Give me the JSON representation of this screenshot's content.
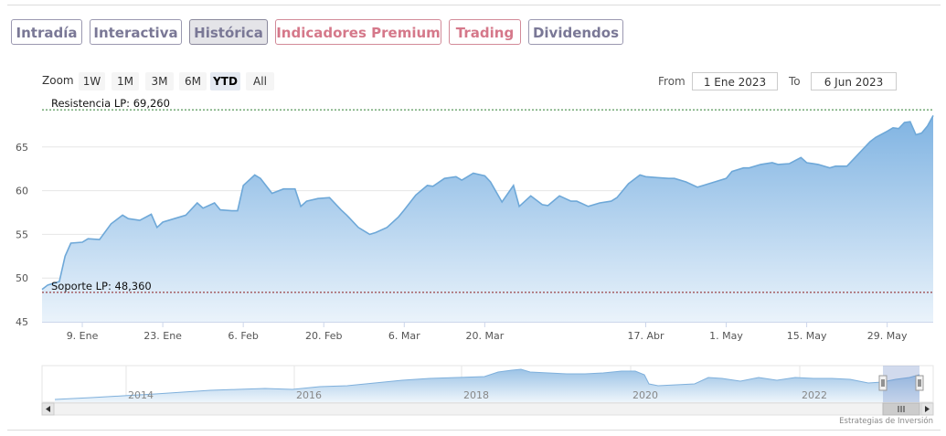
{
  "tabs": [
    {
      "label": "Intradía",
      "style": "gray"
    },
    {
      "label": "Interactiva",
      "style": "gray"
    },
    {
      "label": "Histórica",
      "style": "active"
    },
    {
      "label": "Indicadores Premium",
      "style": "red"
    },
    {
      "label": "Trading",
      "style": "red"
    },
    {
      "label": "Dividendos",
      "style": "gray"
    }
  ],
  "toolbar": {
    "zoom_label": "Zoom",
    "zoom_buttons": [
      "1W",
      "1M",
      "3M",
      "6M",
      "YTD",
      "All"
    ],
    "zoom_active": "YTD",
    "from_label": "From",
    "from_value": "1 Ene 2023",
    "to_label": "To",
    "to_value": "6 Jun 2023"
  },
  "chart_data": {
    "type": "area",
    "x_range": [
      "2023-01-02",
      "2023-06-06"
    ],
    "ylim": [
      45,
      70
    ],
    "y_ticks": [
      45,
      50,
      55,
      60,
      65
    ],
    "x_ticks": [
      {
        "date": "2023-01-09",
        "label": "9. Ene"
      },
      {
        "date": "2023-01-23",
        "label": "23. Ene"
      },
      {
        "date": "2023-02-06",
        "label": "6. Feb"
      },
      {
        "date": "2023-02-20",
        "label": "20. Feb"
      },
      {
        "date": "2023-03-06",
        "label": "6. Mar"
      },
      {
        "date": "2023-03-20",
        "label": "20. Mar"
      },
      {
        "date": "2023-04-17",
        "label": "17. Abr"
      },
      {
        "date": "2023-05-01",
        "label": "1. May"
      },
      {
        "date": "2023-05-15",
        "label": "15. May"
      },
      {
        "date": "2023-05-29",
        "label": "29. May"
      }
    ],
    "grid": true,
    "series": [
      {
        "values": [
          [
            "2023-01-02",
            48.7
          ],
          [
            "2023-01-03",
            49.2
          ],
          [
            "2023-01-05",
            49.6
          ],
          [
            "2023-01-06",
            52.5
          ],
          [
            "2023-01-07",
            54.0
          ],
          [
            "2023-01-09",
            54.1
          ],
          [
            "2023-01-10",
            54.5
          ],
          [
            "2023-01-12",
            54.4
          ],
          [
            "2023-01-14",
            56.2
          ],
          [
            "2023-01-16",
            57.2
          ],
          [
            "2023-01-17",
            56.8
          ],
          [
            "2023-01-19",
            56.6
          ],
          [
            "2023-01-21",
            57.3
          ],
          [
            "2023-01-22",
            55.8
          ],
          [
            "2023-01-23",
            56.4
          ],
          [
            "2023-01-25",
            56.8
          ],
          [
            "2023-01-27",
            57.2
          ],
          [
            "2023-01-29",
            58.6
          ],
          [
            "2023-01-30",
            58.0
          ],
          [
            "2023-02-01",
            58.6
          ],
          [
            "2023-02-02",
            57.8
          ],
          [
            "2023-02-04",
            57.7
          ],
          [
            "2023-02-05",
            57.7
          ],
          [
            "2023-02-06",
            60.6
          ],
          [
            "2023-02-08",
            61.8
          ],
          [
            "2023-02-09",
            61.4
          ],
          [
            "2023-02-11",
            59.7
          ],
          [
            "2023-02-13",
            60.2
          ],
          [
            "2023-02-15",
            60.2
          ],
          [
            "2023-02-16",
            58.2
          ],
          [
            "2023-02-17",
            58.8
          ],
          [
            "2023-02-19",
            59.1
          ],
          [
            "2023-02-21",
            59.2
          ],
          [
            "2023-02-23",
            57.8
          ],
          [
            "2023-02-24",
            57.2
          ],
          [
            "2023-02-26",
            55.8
          ],
          [
            "2023-02-28",
            55.0
          ],
          [
            "2023-03-01",
            55.2
          ],
          [
            "2023-03-03",
            55.8
          ],
          [
            "2023-03-05",
            57.0
          ],
          [
            "2023-03-06",
            57.8
          ],
          [
            "2023-03-08",
            59.5
          ],
          [
            "2023-03-10",
            60.6
          ],
          [
            "2023-03-11",
            60.5
          ],
          [
            "2023-03-13",
            61.4
          ],
          [
            "2023-03-15",
            61.6
          ],
          [
            "2023-03-16",
            61.2
          ],
          [
            "2023-03-18",
            62.0
          ],
          [
            "2023-03-20",
            61.7
          ],
          [
            "2023-03-21",
            61.0
          ],
          [
            "2023-03-23",
            58.7
          ],
          [
            "2023-03-25",
            60.6
          ],
          [
            "2023-03-26",
            58.2
          ],
          [
            "2023-03-28",
            59.4
          ],
          [
            "2023-03-30",
            58.4
          ],
          [
            "2023-03-31",
            58.3
          ],
          [
            "2023-04-02",
            59.4
          ],
          [
            "2023-04-04",
            58.8
          ],
          [
            "2023-04-05",
            58.8
          ],
          [
            "2023-04-07",
            58.2
          ],
          [
            "2023-04-09",
            58.6
          ],
          [
            "2023-04-11",
            58.8
          ],
          [
            "2023-04-12",
            59.2
          ],
          [
            "2023-04-14",
            60.8
          ],
          [
            "2023-04-16",
            61.8
          ],
          [
            "2023-04-17",
            61.6
          ],
          [
            "2023-04-19",
            61.5
          ],
          [
            "2023-04-21",
            61.4
          ],
          [
            "2023-04-22",
            61.4
          ],
          [
            "2023-04-24",
            61.0
          ],
          [
            "2023-04-26",
            60.4
          ],
          [
            "2023-04-27",
            60.6
          ],
          [
            "2023-04-29",
            61.0
          ],
          [
            "2023-05-01",
            61.4
          ],
          [
            "2023-05-02",
            62.2
          ],
          [
            "2023-05-04",
            62.6
          ],
          [
            "2023-05-05",
            62.6
          ],
          [
            "2023-05-07",
            63.0
          ],
          [
            "2023-05-09",
            63.2
          ],
          [
            "2023-05-10",
            63.0
          ],
          [
            "2023-05-12",
            63.1
          ],
          [
            "2023-05-14",
            63.8
          ],
          [
            "2023-05-15",
            63.2
          ],
          [
            "2023-05-17",
            63.0
          ],
          [
            "2023-05-19",
            62.6
          ],
          [
            "2023-05-20",
            62.8
          ],
          [
            "2023-05-22",
            62.8
          ],
          [
            "2023-05-24",
            64.2
          ],
          [
            "2023-05-26",
            65.6
          ],
          [
            "2023-05-27",
            66.1
          ],
          [
            "2023-05-29",
            66.8
          ],
          [
            "2023-05-30",
            67.2
          ],
          [
            "2023-05-31",
            67.1
          ],
          [
            "2023-06-01",
            67.8
          ],
          [
            "2023-06-02",
            67.9
          ],
          [
            "2023-06-03",
            66.4
          ],
          [
            "2023-06-04",
            66.6
          ],
          [
            "2023-06-05",
            67.4
          ],
          [
            "2023-06-06",
            68.6
          ]
        ]
      }
    ],
    "plot_lines": [
      {
        "label": "Resistencia LP: 69,260",
        "value": 69.26,
        "color": "#2e7d32"
      },
      {
        "label": "Soporte LP: 48,360",
        "value": 48.36,
        "color": "#8b1a1a"
      }
    ],
    "navigator": {
      "x_labels": [
        "2014",
        "2016",
        "2018",
        "2020",
        "2022"
      ]
    }
  },
  "credits": "Estrategias de Inversión",
  "colors": {
    "series_line": "#6ea8d8",
    "area_top": "#7fb3e2",
    "area_bottom": "#eaf3fb",
    "grid": "#e6e6e6"
  }
}
